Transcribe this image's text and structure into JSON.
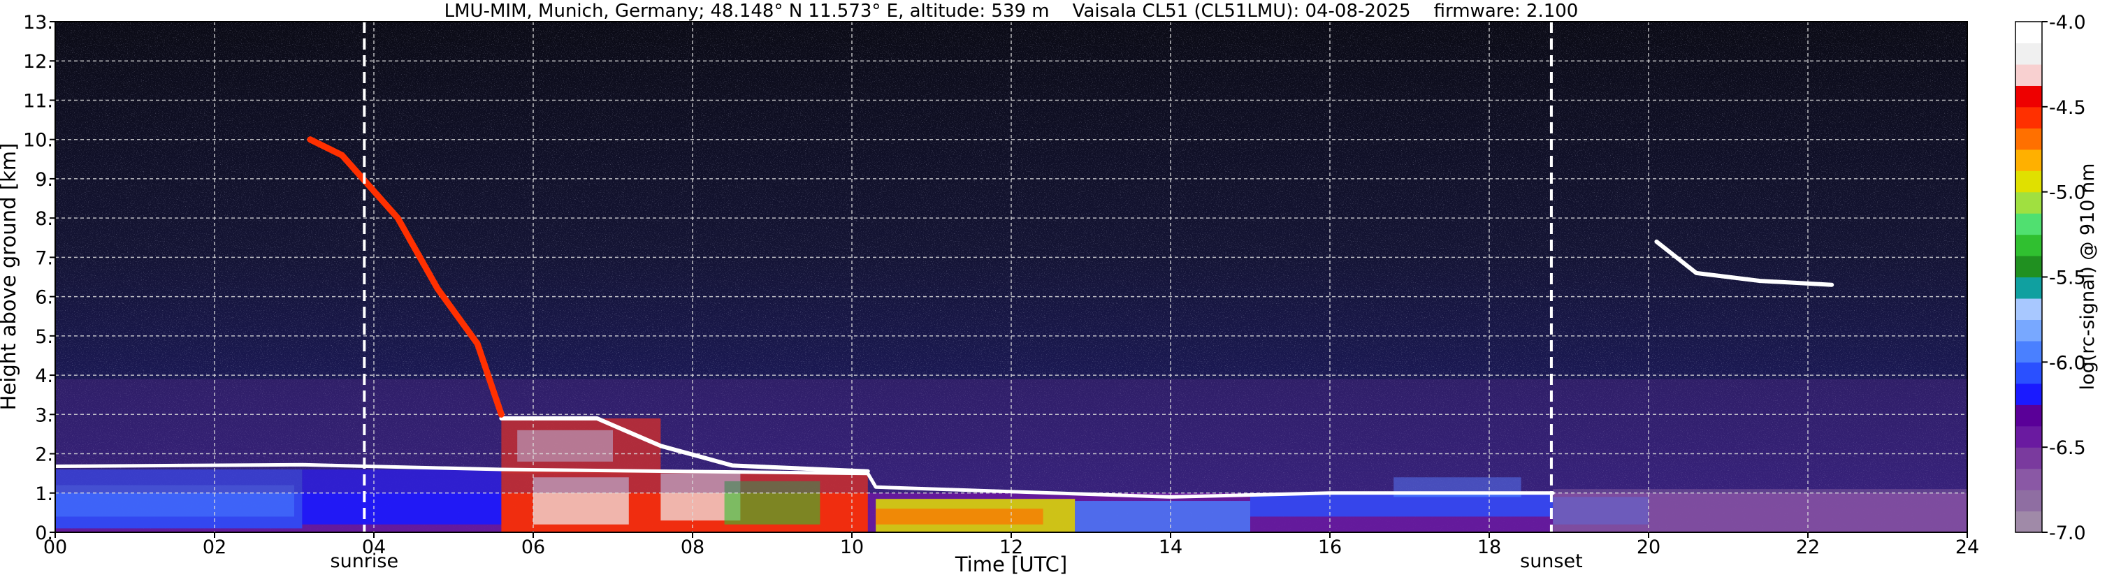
{
  "chart_data": {
    "type": "heatmap",
    "title": "LMU-MIM, Munich, Germany; 48.148° N 11.573° E, altitude: 539 m    Vaisala CL51 (CL51LMU): 04-08-2025    firmware: 2.100",
    "xlabel": "Time [UTC]",
    "ylabel": "Height above ground [km]",
    "x_range": [
      0,
      24
    ],
    "y_range": [
      0,
      13
    ],
    "x_ticks": [
      0,
      2,
      4,
      6,
      8,
      10,
      12,
      14,
      16,
      18,
      20,
      22,
      24
    ],
    "x_tick_labels": [
      "00",
      "02",
      "04",
      "06",
      "08",
      "10",
      "12",
      "14",
      "16",
      "18",
      "20",
      "22",
      "24"
    ],
    "y_ticks": [
      0,
      1,
      2,
      3,
      4,
      5,
      6,
      7,
      8,
      9,
      10,
      11,
      12,
      13
    ],
    "y_tick_labels": [
      "0.",
      "1.",
      "2.",
      "3.",
      "4.",
      "5.",
      "6.",
      "7.",
      "8.",
      "9.",
      "10.",
      "11.",
      "12.",
      "13."
    ],
    "grid": true,
    "colorbar": {
      "label": "log(rc-signal) @ 910 nm",
      "range": [
        -7.0,
        -4.0
      ],
      "ticks": [
        -7.0,
        -6.5,
        -6.0,
        -5.5,
        -5.0,
        -4.5,
        -4.0
      ],
      "tick_labels": [
        "-7.0",
        "-6.5",
        "-6.0",
        "-5.5",
        "-5.0",
        "-4.5",
        "-4.0"
      ],
      "colors": [
        "#a08aa8",
        "#8f6ea2",
        "#8a58a5",
        "#7a3a9e",
        "#6a1aa0",
        "#5a0098",
        "#1a1aff",
        "#2a50ff",
        "#4a80ff",
        "#78a8ff",
        "#a8c8ff",
        "#10a0a0",
        "#209020",
        "#30c030",
        "#50e070",
        "#a0e040",
        "#e0e000",
        "#ffb000",
        "#ff7000",
        "#ff3000",
        "#ee0000",
        "#f8d0d0",
        "#f0f0f0",
        "#ffffff"
      ]
    },
    "markers": [
      {
        "label": "sunrise",
        "time": 3.88
      },
      {
        "label": "sunset",
        "time": 18.78
      }
    ],
    "features": [
      {
        "name": "boundary-layer-top",
        "points": [
          [
            0,
            1.68
          ],
          [
            3.1,
            1.72
          ],
          [
            5.6,
            1.6
          ],
          [
            10.2,
            1.5
          ],
          [
            10.3,
            1.15
          ],
          [
            14,
            0.9
          ],
          [
            16,
            1.0
          ],
          [
            18.8,
            1.0
          ]
        ]
      },
      {
        "name": "cloud-base-layer",
        "points": [
          [
            5.6,
            2.9
          ],
          [
            6.8,
            2.9
          ],
          [
            7.6,
            2.2
          ],
          [
            8.5,
            1.7
          ],
          [
            10.2,
            1.55
          ]
        ]
      },
      {
        "name": "cirrus-descending",
        "points": [
          [
            3.2,
            10.0
          ],
          [
            3.6,
            9.6
          ],
          [
            4.3,
            8.0
          ],
          [
            4.8,
            6.2
          ],
          [
            5.3,
            4.8
          ],
          [
            5.6,
            3.0
          ]
        ]
      },
      {
        "name": "cirrus-evening",
        "points": [
          [
            20.1,
            7.4
          ],
          [
            20.6,
            6.6
          ],
          [
            21.4,
            6.4
          ],
          [
            22.3,
            6.3
          ]
        ]
      }
    ]
  }
}
